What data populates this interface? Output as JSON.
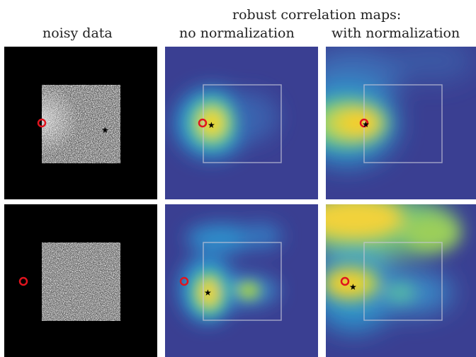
{
  "headers": {
    "col1": "noisy data",
    "group": "robust correlation maps:",
    "col2": "no normalization",
    "col3": "with normalization"
  },
  "colors": {
    "map_background": "#3a3f92",
    "map_peak": "#ffd21e",
    "marker_circle": "#e0141e",
    "marker_star": "#000000",
    "frame_outline": "#c8c8d8"
  },
  "panels": [
    {
      "row": 1,
      "col": 1,
      "kind": "noisy-data"
    },
    {
      "row": 1,
      "col": 2,
      "kind": "correlation-map"
    },
    {
      "row": 1,
      "col": 3,
      "kind": "correlation-map"
    },
    {
      "row": 2,
      "col": 1,
      "kind": "noisy-data"
    },
    {
      "row": 2,
      "col": 2,
      "kind": "correlation-map"
    },
    {
      "row": 2,
      "col": 3,
      "kind": "correlation-map"
    }
  ]
}
